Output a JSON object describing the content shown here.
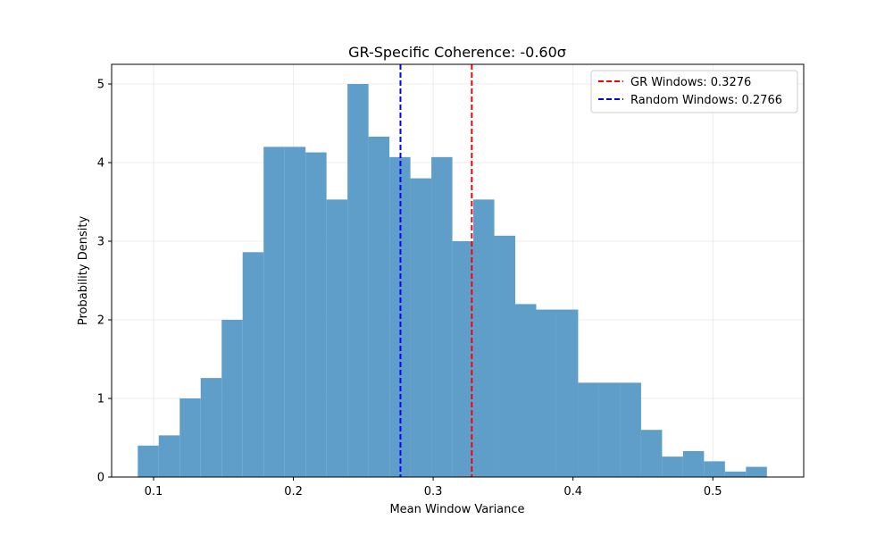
{
  "chart_data": {
    "type": "bar",
    "title": "GR-Specific Coherence: -0.60σ",
    "xlabel": "Mean Window Variance",
    "ylabel": "Probability Density",
    "xlim": [
      0.07,
      0.565
    ],
    "ylim": [
      0,
      5.25
    ],
    "xticks": [
      0.1,
      0.2,
      0.3,
      0.4,
      0.5
    ],
    "xtick_labels": [
      "0.1",
      "0.2",
      "0.3",
      "0.4",
      "0.5"
    ],
    "yticks": [
      0,
      1,
      2,
      3,
      4,
      5
    ],
    "ytick_labels": [
      "0",
      "1",
      "2",
      "3",
      "4",
      "5"
    ],
    "grid": true,
    "legend_position": "top-right",
    "bar_color": "#5f9ec9",
    "bin_edges": [
      0.0887,
      0.1037,
      0.1187,
      0.1337,
      0.1487,
      0.1637,
      0.1787,
      0.1937,
      0.2087,
      0.2237,
      0.2387,
      0.2537,
      0.2687,
      0.2837,
      0.2987,
      0.3137,
      0.3287,
      0.3437,
      0.3587,
      0.3737,
      0.3887,
      0.4037,
      0.4187,
      0.4337,
      0.4487,
      0.4637,
      0.4787,
      0.4937,
      0.5087,
      0.5237,
      0.5387
    ],
    "densities": [
      0.4,
      0.53,
      1.0,
      1.26,
      2.0,
      2.86,
      4.2,
      4.2,
      4.13,
      3.53,
      5.0,
      4.33,
      4.07,
      3.8,
      4.07,
      3.0,
      3.53,
      3.07,
      2.2,
      2.13,
      2.13,
      1.2,
      1.2,
      1.2,
      0.6,
      0.26,
      0.33,
      0.2,
      0.07,
      0.13
    ],
    "vlines": [
      {
        "label": "GR Windows: 0.3276",
        "x": 0.3276,
        "color": "#ff0000"
      },
      {
        "label": "Random Windows: 0.2766",
        "x": 0.2766,
        "color": "#0000ff"
      }
    ]
  }
}
